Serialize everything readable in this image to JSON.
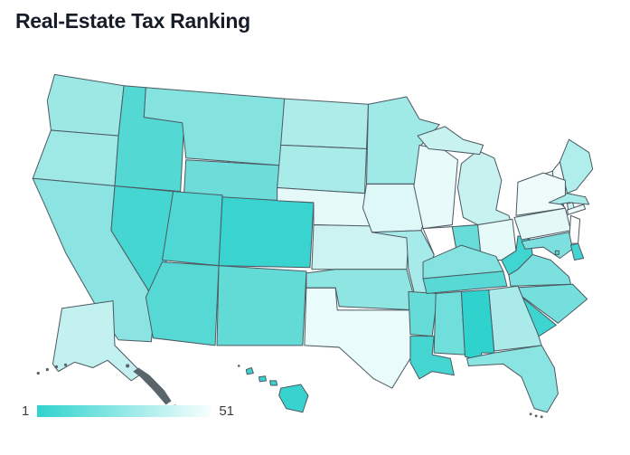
{
  "title": "Real-Estate Tax Ranking",
  "legend": {
    "min_label": "1",
    "max_label": "51"
  },
  "map": {
    "border_color": "#4d5a63",
    "island_color": "#5a646b",
    "background": "#ffffff"
  },
  "chart_data": {
    "type": "heatmap",
    "variant": "us-choropleth",
    "title": "Real-Estate Tax Ranking",
    "legend_position": "bottom-left",
    "colorbar": {
      "min": 1,
      "max": 51,
      "min_color": "#2fd3ce",
      "max_color": "#f7fefe"
    },
    "states": [
      {
        "id": "WA",
        "name": "Washington",
        "color": "#9ce8e5",
        "rank_estimate": 27
      },
      {
        "id": "OR",
        "name": "Oregon",
        "color": "#9ee8e6",
        "rank_estimate": 28
      },
      {
        "id": "CA",
        "name": "California",
        "color": "#8ce4e2",
        "rank_estimate": 25
      },
      {
        "id": "NV",
        "name": "Nevada",
        "color": "#46d6d2",
        "rank_estimate": 8
      },
      {
        "id": "ID",
        "name": "Idaho",
        "color": "#54d8d4",
        "rank_estimate": 10
      },
      {
        "id": "MT",
        "name": "Montana",
        "color": "#84e2df",
        "rank_estimate": 23
      },
      {
        "id": "WY",
        "name": "Wyoming",
        "color": "#6eddda",
        "rank_estimate": 16
      },
      {
        "id": "UT",
        "name": "Utah",
        "color": "#4ed7d3",
        "rank_estimate": 9
      },
      {
        "id": "CO",
        "name": "Colorado",
        "color": "#3ad4d0",
        "rank_estimate": 3
      },
      {
        "id": "AZ",
        "name": "Arizona",
        "color": "#56d9d5",
        "rank_estimate": 11
      },
      {
        "id": "NM",
        "name": "New Mexico",
        "color": "#62dbd7",
        "rank_estimate": 15
      },
      {
        "id": "AK",
        "name": "Alaska",
        "color": "#c2f1ef",
        "rank_estimate": 37
      },
      {
        "id": "ND",
        "name": "North Dakota",
        "color": "#aeecea",
        "rank_estimate": 35
      },
      {
        "id": "SD",
        "name": "South Dakota",
        "color": "#a8ebe9",
        "rank_estimate": 34
      },
      {
        "id": "NE",
        "name": "Nebraska",
        "color": "#e4f9f8",
        "rank_estimate": 41
      },
      {
        "id": "KS",
        "name": "Kansas",
        "color": "#ccf3f2",
        "rank_estimate": 38
      },
      {
        "id": "OK",
        "name": "Oklahoma",
        "color": "#8ee5e2",
        "rank_estimate": 26
      },
      {
        "id": "TX",
        "name": "Texas",
        "color": "#e9fbfa",
        "rank_estimate": 46
      },
      {
        "id": "MN",
        "name": "Minnesota",
        "color": "#9fe9e7",
        "rank_estimate": 29
      },
      {
        "id": "IA",
        "name": "Iowa",
        "color": "#ddf8f7",
        "rank_estimate": 40
      },
      {
        "id": "MO",
        "name": "Missouri",
        "color": "#a6ebe9",
        "rank_estimate": 30
      },
      {
        "id": "AR",
        "name": "Arkansas",
        "color": "#66dcd8",
        "rank_estimate": 13
      },
      {
        "id": "LA",
        "name": "Louisiana",
        "color": "#46d6d2",
        "rank_estimate": 5
      },
      {
        "id": "MS",
        "name": "Mississippi",
        "color": "#70dedb",
        "rank_estimate": 17
      },
      {
        "id": "WI",
        "name": "Wisconsin",
        "color": "#e8faf9",
        "rank_estimate": 44
      },
      {
        "id": "MI",
        "name": "Michigan",
        "color": "#c8f2f0",
        "rank_estimate": 36
      },
      {
        "id": "IL",
        "name": "Illinois",
        "color": "#ffffff",
        "rank_estimate": 50
      },
      {
        "id": "IN",
        "name": "Indiana",
        "color": "#68dcd9",
        "rank_estimate": 14
      },
      {
        "id": "OH",
        "name": "Ohio",
        "color": "#e6faf9",
        "rank_estimate": 42
      },
      {
        "id": "KY",
        "name": "Kentucky",
        "color": "#84e3e0",
        "rank_estimate": 21
      },
      {
        "id": "TN",
        "name": "Tennessee",
        "color": "#58d9d5",
        "rank_estimate": 12
      },
      {
        "id": "WV",
        "name": "West Virginia",
        "color": "#40d5d1",
        "rank_estimate": 6
      },
      {
        "id": "VA",
        "name": "Virginia",
        "color": "#7ce1de",
        "rank_estimate": 19
      },
      {
        "id": "NC",
        "name": "North Carolina",
        "color": "#74dfdc",
        "rank_estimate": 18
      },
      {
        "id": "SC",
        "name": "South Carolina",
        "color": "#3ed4d0",
        "rank_estimate": 4
      },
      {
        "id": "GA",
        "name": "Georgia",
        "color": "#aaebe9",
        "rank_estimate": 32
      },
      {
        "id": "AL",
        "name": "Alabama",
        "color": "#30d2ce",
        "rank_estimate": 2
      },
      {
        "id": "FL",
        "name": "Florida",
        "color": "#8ae4e1",
        "rank_estimate": 24
      },
      {
        "id": "ME",
        "name": "Maine",
        "color": "#b0eeec",
        "rank_estimate": 33
      },
      {
        "id": "NH",
        "name": "New Hampshire",
        "color": "#f2fdfc",
        "rank_estimate": 49
      },
      {
        "id": "VT",
        "name": "Vermont",
        "color": "#e6faf9",
        "rank_estimate": 43
      },
      {
        "id": "MA",
        "name": "Massachusetts",
        "color": "#a8ecea",
        "rank_estimate": 31
      },
      {
        "id": "RI",
        "name": "Rhode Island",
        "color": "#d2f5f4",
        "rank_estimate": 39
      },
      {
        "id": "CT",
        "name": "Connecticut",
        "color": "#eefbfb",
        "rank_estimate": 48
      },
      {
        "id": "NY",
        "name": "New York",
        "color": "#eefbfa",
        "rank_estimate": 47
      },
      {
        "id": "PA",
        "name": "Pennsylvania",
        "color": "#e2f9f8",
        "rank_estimate": 45
      },
      {
        "id": "NJ",
        "name": "New Jersey",
        "color": "#fdfffe",
        "rank_estimate": 51
      },
      {
        "id": "MD",
        "name": "Maryland",
        "color": "#7ce1de",
        "rank_estimate": 20
      },
      {
        "id": "DE",
        "name": "Delaware",
        "color": "#42d5d1",
        "rank_estimate": 7
      },
      {
        "id": "DC",
        "name": "District of Columbia",
        "color": "#5ad9d5",
        "rank_estimate": 22
      },
      {
        "id": "HI",
        "name": "Hawaii",
        "color": "#38d3cf",
        "rank_estimate": 1
      }
    ]
  }
}
